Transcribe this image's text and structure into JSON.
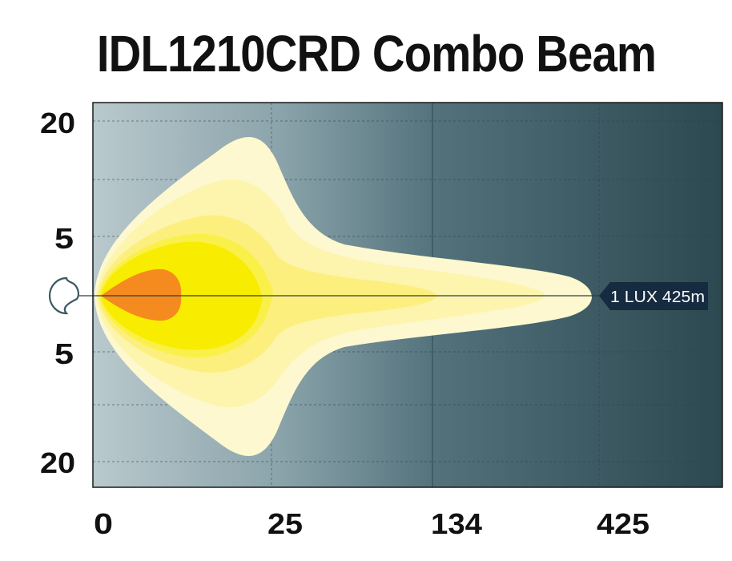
{
  "chart_data": {
    "type": "area",
    "title": "IDL1210CRD Combo Beam",
    "x_ticks": [
      "0",
      "25",
      "134",
      "425"
    ],
    "y_ticks": [
      "20",
      "5",
      "5",
      "20"
    ],
    "annotation": "1 LUX 425m",
    "reach_m": 425,
    "grid": true,
    "zones": [
      {
        "name": "1 lux",
        "color": "#fdf8cf"
      },
      {
        "name": "zone-2",
        "color": "#fdf4ae"
      },
      {
        "name": "zone-3",
        "color": "#fcef7d"
      },
      {
        "name": "zone-4",
        "color": "#faf04a"
      },
      {
        "name": "zone-5",
        "color": "#f8ec00"
      },
      {
        "name": "hotspot",
        "color": "#f58a1f"
      }
    ]
  },
  "colors": {
    "background_left": "#b9c9cd",
    "background_right": "#2c4850",
    "annotation_bg": "#162a40"
  }
}
